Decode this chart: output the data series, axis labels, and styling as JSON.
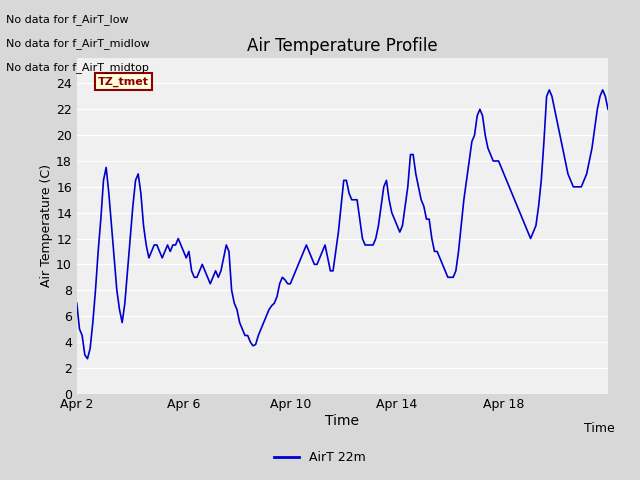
{
  "title": "Air Temperature Profile",
  "xlabel": "Time",
  "ylabel": "Air Temperature (C)",
  "legend_label": "AirT 22m",
  "no_data_labels": [
    "No data for f_AirT_low",
    "No data for f_AirT_midlow",
    "No data for f_AirT_midtop"
  ],
  "tz_label": "TZ_tmet",
  "ylim": [
    0,
    26
  ],
  "yticks": [
    0,
    2,
    4,
    6,
    8,
    10,
    12,
    14,
    16,
    18,
    20,
    22,
    24
  ],
  "x_tick_labels": [
    "Apr 2",
    "Apr 6",
    "Apr 10",
    "Apr 14",
    "Apr 18"
  ],
  "line_color": "#0000cc",
  "background_color": "#e8e8e8",
  "plot_bg_color": "#f0f0f0",
  "time_values": [
    0.0,
    0.1,
    0.2,
    0.3,
    0.4,
    0.5,
    0.6,
    0.7,
    0.8,
    0.9,
    1.0,
    1.1,
    1.2,
    1.3,
    1.4,
    1.5,
    1.6,
    1.7,
    1.8,
    1.9,
    2.0,
    2.1,
    2.2,
    2.3,
    2.4,
    2.5,
    2.6,
    2.7,
    2.8,
    2.9,
    3.0,
    3.1,
    3.2,
    3.3,
    3.4,
    3.5,
    3.6,
    3.7,
    3.8,
    3.9,
    4.0,
    4.1,
    4.2,
    4.3,
    4.4,
    4.5,
    4.6,
    4.7,
    4.8,
    4.9,
    5.0,
    5.1,
    5.2,
    5.3,
    5.4,
    5.5,
    5.6,
    5.7,
    5.8,
    5.9,
    6.0,
    6.1,
    6.2,
    6.3,
    6.4,
    6.5,
    6.6,
    6.7,
    6.8,
    6.9,
    7.0,
    7.1,
    7.2,
    7.3,
    7.4,
    7.5,
    7.6,
    7.7,
    7.8,
    7.9,
    8.0,
    8.1,
    8.2,
    8.3,
    8.4,
    8.5,
    8.6,
    8.7,
    8.8,
    8.9,
    9.0,
    9.1,
    9.2,
    9.3,
    9.4,
    9.5,
    9.6,
    9.7,
    9.8,
    9.9,
    10.0,
    10.1,
    10.2,
    10.3,
    10.4,
    10.5,
    10.6,
    10.7,
    10.8,
    10.9,
    11.0,
    11.1,
    11.2,
    11.3,
    11.4,
    11.5,
    11.6,
    11.7,
    11.8,
    11.9,
    12.0,
    12.1,
    12.2,
    12.3,
    12.4,
    12.5,
    12.6,
    12.7,
    12.8,
    12.9,
    13.0,
    13.1,
    13.2,
    13.3,
    13.4,
    13.5,
    13.6,
    13.7,
    13.8,
    13.9,
    14.0,
    14.1,
    14.2,
    14.3,
    14.4,
    14.5,
    14.6,
    14.7,
    14.8,
    14.9,
    15.0,
    15.1,
    15.2,
    15.3,
    15.4,
    15.5,
    15.6,
    15.7,
    15.8,
    15.9,
    16.0,
    16.1,
    16.2,
    16.3,
    16.4,
    16.5,
    16.6,
    16.7,
    16.8,
    16.9,
    17.0,
    17.1,
    17.2,
    17.3,
    17.4,
    17.5,
    17.6,
    17.7,
    17.8,
    17.9,
    18.0,
    18.1,
    18.2,
    18.3,
    18.4,
    18.5,
    18.6,
    18.7,
    18.8,
    18.9,
    19.0,
    19.1,
    19.2,
    19.3,
    19.4,
    19.5,
    19.6,
    19.7,
    19.8,
    19.9
  ],
  "temp_values": [
    7.0,
    5.0,
    4.5,
    3.0,
    2.7,
    3.5,
    5.5,
    8.0,
    11.0,
    13.5,
    16.5,
    17.5,
    15.5,
    13.0,
    10.5,
    8.0,
    6.5,
    5.5,
    7.0,
    9.5,
    12.0,
    14.5,
    16.5,
    17.0,
    15.5,
    13.0,
    11.5,
    10.5,
    11.0,
    11.5,
    11.5,
    11.0,
    10.5,
    11.0,
    11.5,
    11.0,
    11.5,
    11.5,
    12.0,
    11.5,
    11.0,
    10.5,
    11.0,
    9.5,
    9.0,
    9.0,
    9.5,
    10.0,
    9.5,
    9.0,
    8.5,
    9.0,
    9.5,
    9.0,
    9.5,
    10.5,
    11.5,
    11.0,
    8.0,
    7.0,
    6.5,
    5.5,
    5.0,
    4.5,
    4.5,
    4.0,
    3.7,
    3.8,
    4.5,
    5.0,
    5.5,
    6.0,
    6.5,
    6.8,
    7.0,
    7.5,
    8.5,
    9.0,
    8.8,
    8.5,
    8.5,
    9.0,
    9.5,
    10.0,
    10.5,
    11.0,
    11.5,
    11.0,
    10.5,
    10.0,
    10.0,
    10.5,
    11.0,
    11.5,
    10.5,
    9.5,
    9.5,
    11.0,
    12.5,
    14.5,
    16.5,
    16.5,
    15.5,
    15.0,
    15.0,
    15.0,
    13.5,
    12.0,
    11.5,
    11.5,
    11.5,
    11.5,
    12.0,
    13.0,
    14.5,
    16.0,
    16.5,
    15.0,
    14.0,
    13.5,
    13.0,
    12.5,
    13.0,
    14.5,
    16.0,
    18.5,
    18.5,
    17.0,
    16.0,
    15.0,
    14.5,
    13.5,
    13.5,
    12.0,
    11.0,
    11.0,
    10.5,
    10.0,
    9.5,
    9.0,
    9.0,
    9.0,
    9.5,
    11.0,
    13.0,
    15.0,
    16.5,
    18.0,
    19.5,
    20.0,
    21.5,
    22.0,
    21.5,
    20.0,
    19.0,
    18.5,
    18.0,
    18.0,
    18.0,
    17.5,
    17.0,
    16.5,
    16.0,
    15.5,
    15.0,
    14.5,
    14.0,
    13.5,
    13.0,
    12.5,
    12.0,
    12.5,
    13.0,
    14.5,
    16.5,
    19.5,
    23.0,
    23.5,
    23.0,
    22.0,
    21.0,
    20.0,
    19.0,
    18.0,
    17.0,
    16.5,
    16.0,
    16.0,
    16.0,
    16.0,
    16.5,
    17.0,
    18.0,
    19.0,
    20.5,
    22.0,
    23.0,
    23.5,
    23.0,
    22.0
  ],
  "x_tick_positions": [
    0,
    4,
    8,
    12,
    16
  ],
  "xlim": [
    0,
    19.9
  ]
}
